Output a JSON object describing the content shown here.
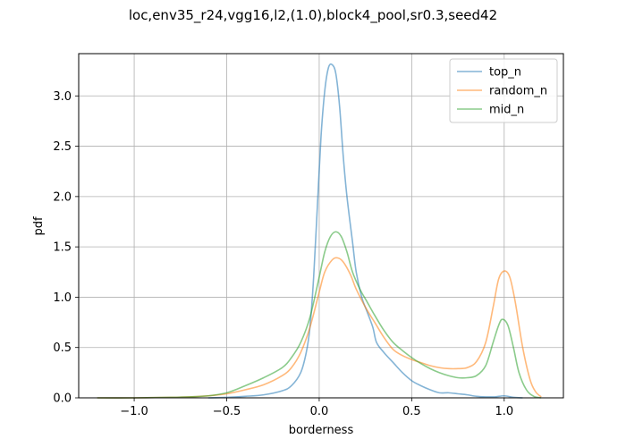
{
  "chart_data": {
    "type": "line",
    "title": "loc,env35_r24,vgg16,l2,(1.0),block4_pool,sr0.3,seed42",
    "xlabel": "borderness",
    "ylabel": "pdf",
    "xlim": [
      -1.3,
      1.32
    ],
    "ylim": [
      0,
      3.42
    ],
    "x_ticks": [
      -1.0,
      -0.5,
      0.0,
      0.5,
      1.0
    ],
    "x_tick_labels": [
      "−1.0",
      "−0.5",
      "0.0",
      "0.5",
      "1.0"
    ],
    "y_ticks": [
      0.0,
      0.5,
      1.0,
      1.5,
      2.0,
      2.5,
      3.0
    ],
    "y_tick_labels": [
      "0.0",
      "0.5",
      "1.0",
      "1.5",
      "2.0",
      "2.5",
      "3.0"
    ],
    "grid": true,
    "legend_position": "top-right",
    "series": [
      {
        "name": "top_n",
        "color": "#1f77b4",
        "points": [
          [
            -0.6,
            0.0
          ],
          [
            -0.5,
            0.005
          ],
          [
            -0.4,
            0.015
          ],
          [
            -0.3,
            0.03
          ],
          [
            -0.2,
            0.07
          ],
          [
            -0.15,
            0.12
          ],
          [
            -0.1,
            0.25
          ],
          [
            -0.07,
            0.45
          ],
          [
            -0.05,
            0.7
          ],
          [
            -0.03,
            1.2
          ],
          [
            -0.01,
            1.9
          ],
          [
            0.01,
            2.6
          ],
          [
            0.03,
            3.05
          ],
          [
            0.05,
            3.28
          ],
          [
            0.07,
            3.31
          ],
          [
            0.09,
            3.22
          ],
          [
            0.11,
            2.9
          ],
          [
            0.13,
            2.4
          ],
          [
            0.15,
            2.0
          ],
          [
            0.18,
            1.55
          ],
          [
            0.2,
            1.25
          ],
          [
            0.23,
            1.0
          ],
          [
            0.26,
            0.85
          ],
          [
            0.29,
            0.7
          ],
          [
            0.31,
            0.55
          ],
          [
            0.35,
            0.45
          ],
          [
            0.4,
            0.35
          ],
          [
            0.45,
            0.25
          ],
          [
            0.5,
            0.17
          ],
          [
            0.55,
            0.12
          ],
          [
            0.6,
            0.08
          ],
          [
            0.65,
            0.05
          ],
          [
            0.7,
            0.05
          ],
          [
            0.75,
            0.04
          ],
          [
            0.8,
            0.03
          ],
          [
            0.85,
            0.015
          ],
          [
            0.9,
            0.01
          ],
          [
            0.95,
            0.01
          ],
          [
            1.0,
            0.02
          ],
          [
            1.05,
            0.005
          ],
          [
            1.1,
            0.0
          ]
        ]
      },
      {
        "name": "random_n",
        "color": "#ff7f0e",
        "points": [
          [
            -1.2,
            0.0
          ],
          [
            -1.0,
            0.0
          ],
          [
            -0.8,
            0.005
          ],
          [
            -0.7,
            0.01
          ],
          [
            -0.6,
            0.02
          ],
          [
            -0.5,
            0.04
          ],
          [
            -0.4,
            0.08
          ],
          [
            -0.3,
            0.13
          ],
          [
            -0.2,
            0.22
          ],
          [
            -0.15,
            0.3
          ],
          [
            -0.1,
            0.45
          ],
          [
            -0.05,
            0.7
          ],
          [
            0.0,
            1.05
          ],
          [
            0.03,
            1.25
          ],
          [
            0.07,
            1.37
          ],
          [
            0.1,
            1.39
          ],
          [
            0.13,
            1.35
          ],
          [
            0.17,
            1.22
          ],
          [
            0.2,
            1.08
          ],
          [
            0.25,
            0.9
          ],
          [
            0.3,
            0.75
          ],
          [
            0.35,
            0.6
          ],
          [
            0.4,
            0.48
          ],
          [
            0.45,
            0.42
          ],
          [
            0.5,
            0.38
          ],
          [
            0.55,
            0.35
          ],
          [
            0.6,
            0.32
          ],
          [
            0.65,
            0.3
          ],
          [
            0.7,
            0.29
          ],
          [
            0.75,
            0.29
          ],
          [
            0.8,
            0.3
          ],
          [
            0.85,
            0.36
          ],
          [
            0.9,
            0.55
          ],
          [
            0.94,
            0.9
          ],
          [
            0.97,
            1.18
          ],
          [
            1.0,
            1.26
          ],
          [
            1.03,
            1.2
          ],
          [
            1.06,
            0.95
          ],
          [
            1.1,
            0.5
          ],
          [
            1.14,
            0.18
          ],
          [
            1.17,
            0.06
          ],
          [
            1.2,
            0.01
          ]
        ]
      },
      {
        "name": "mid_n",
        "color": "#2ca02c",
        "points": [
          [
            -1.2,
            0.0
          ],
          [
            -1.0,
            0.0
          ],
          [
            -0.8,
            0.005
          ],
          [
            -0.7,
            0.01
          ],
          [
            -0.6,
            0.02
          ],
          [
            -0.5,
            0.05
          ],
          [
            -0.4,
            0.12
          ],
          [
            -0.3,
            0.2
          ],
          [
            -0.2,
            0.3
          ],
          [
            -0.15,
            0.4
          ],
          [
            -0.1,
            0.55
          ],
          [
            -0.05,
            0.8
          ],
          [
            0.0,
            1.2
          ],
          [
            0.03,
            1.45
          ],
          [
            0.06,
            1.6
          ],
          [
            0.09,
            1.65
          ],
          [
            0.12,
            1.6
          ],
          [
            0.15,
            1.45
          ],
          [
            0.18,
            1.25
          ],
          [
            0.22,
            1.08
          ],
          [
            0.26,
            0.95
          ],
          [
            0.3,
            0.82
          ],
          [
            0.35,
            0.67
          ],
          [
            0.4,
            0.55
          ],
          [
            0.45,
            0.47
          ],
          [
            0.5,
            0.4
          ],
          [
            0.55,
            0.34
          ],
          [
            0.6,
            0.29
          ],
          [
            0.65,
            0.25
          ],
          [
            0.7,
            0.22
          ],
          [
            0.75,
            0.2
          ],
          [
            0.8,
            0.2
          ],
          [
            0.85,
            0.22
          ],
          [
            0.9,
            0.32
          ],
          [
            0.94,
            0.55
          ],
          [
            0.97,
            0.72
          ],
          [
            0.99,
            0.78
          ],
          [
            1.02,
            0.72
          ],
          [
            1.05,
            0.5
          ],
          [
            1.08,
            0.25
          ],
          [
            1.12,
            0.08
          ],
          [
            1.16,
            0.015
          ],
          [
            1.2,
            0.0
          ]
        ]
      }
    ]
  }
}
